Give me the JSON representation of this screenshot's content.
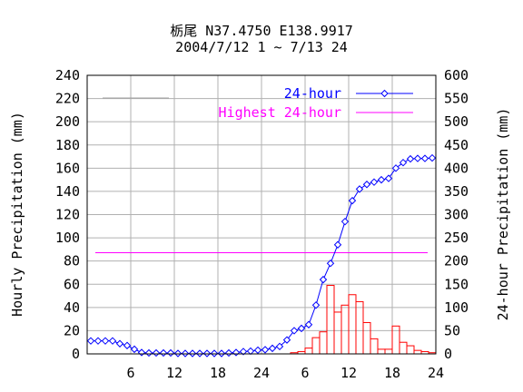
{
  "chart_data": {
    "type": "bar+line",
    "title_line1": "栃尾 N37.4750 E138.9917",
    "title_line2": "2004/7/12 1 ~ 7/13 24",
    "ylabel_left": "Hourly Precipitation (mm)",
    "ylabel_right": "24-hour Precipitation (mm)",
    "ylim_left": [
      0,
      240
    ],
    "ylim_right": [
      0,
      600
    ],
    "yticks_left": [
      "0",
      "20",
      "40",
      "60",
      "80",
      "100",
      "120",
      "140",
      "160",
      "180",
      "200",
      "220",
      "240"
    ],
    "yticks_right": [
      "0",
      "50",
      "100",
      "150",
      "200",
      "250",
      "300",
      "350",
      "400",
      "450",
      "500",
      "550",
      "600"
    ],
    "xticks": [
      "6",
      "12",
      "18",
      "24",
      "6",
      "12",
      "18",
      "24"
    ],
    "x_hours": 48,
    "grid": true,
    "legend_position": "top-right",
    "colors": {
      "hourly": "#ff0000",
      "cumulative": "#0000ff",
      "highest": "#ff00ff",
      "grid": "#b0b0b0",
      "legend_line": "#a0a0a0"
    },
    "series": [
      {
        "name": "Hourly",
        "axis": "left",
        "values": [
          0,
          0,
          0,
          0,
          0,
          0,
          0,
          0,
          0,
          0,
          0,
          0,
          0,
          0,
          0,
          0,
          0,
          0,
          0,
          0,
          0,
          0,
          0,
          0,
          0,
          0,
          0,
          0,
          1,
          2,
          5,
          14,
          19,
          59,
          36,
          42,
          51,
          45,
          27,
          13,
          4,
          4,
          24,
          10,
          7,
          3,
          2,
          1
        ]
      },
      {
        "name": "24-hour",
        "axis": "right",
        "values": [
          28,
          28,
          28,
          28,
          22,
          18,
          10,
          3,
          2,
          2,
          2,
          2,
          1,
          1,
          1,
          1,
          1,
          1,
          1,
          2,
          3,
          5,
          6,
          8,
          9,
          12,
          16,
          30,
          50,
          55,
          63,
          105,
          160,
          195,
          235,
          285,
          330,
          355,
          365,
          370,
          375,
          378,
          400,
          412,
          420,
          421,
          421,
          422
        ]
      }
    ],
    "highest_24_hour": {
      "name": "Highest 24-hour",
      "axis": "right",
      "value": 218
    }
  }
}
